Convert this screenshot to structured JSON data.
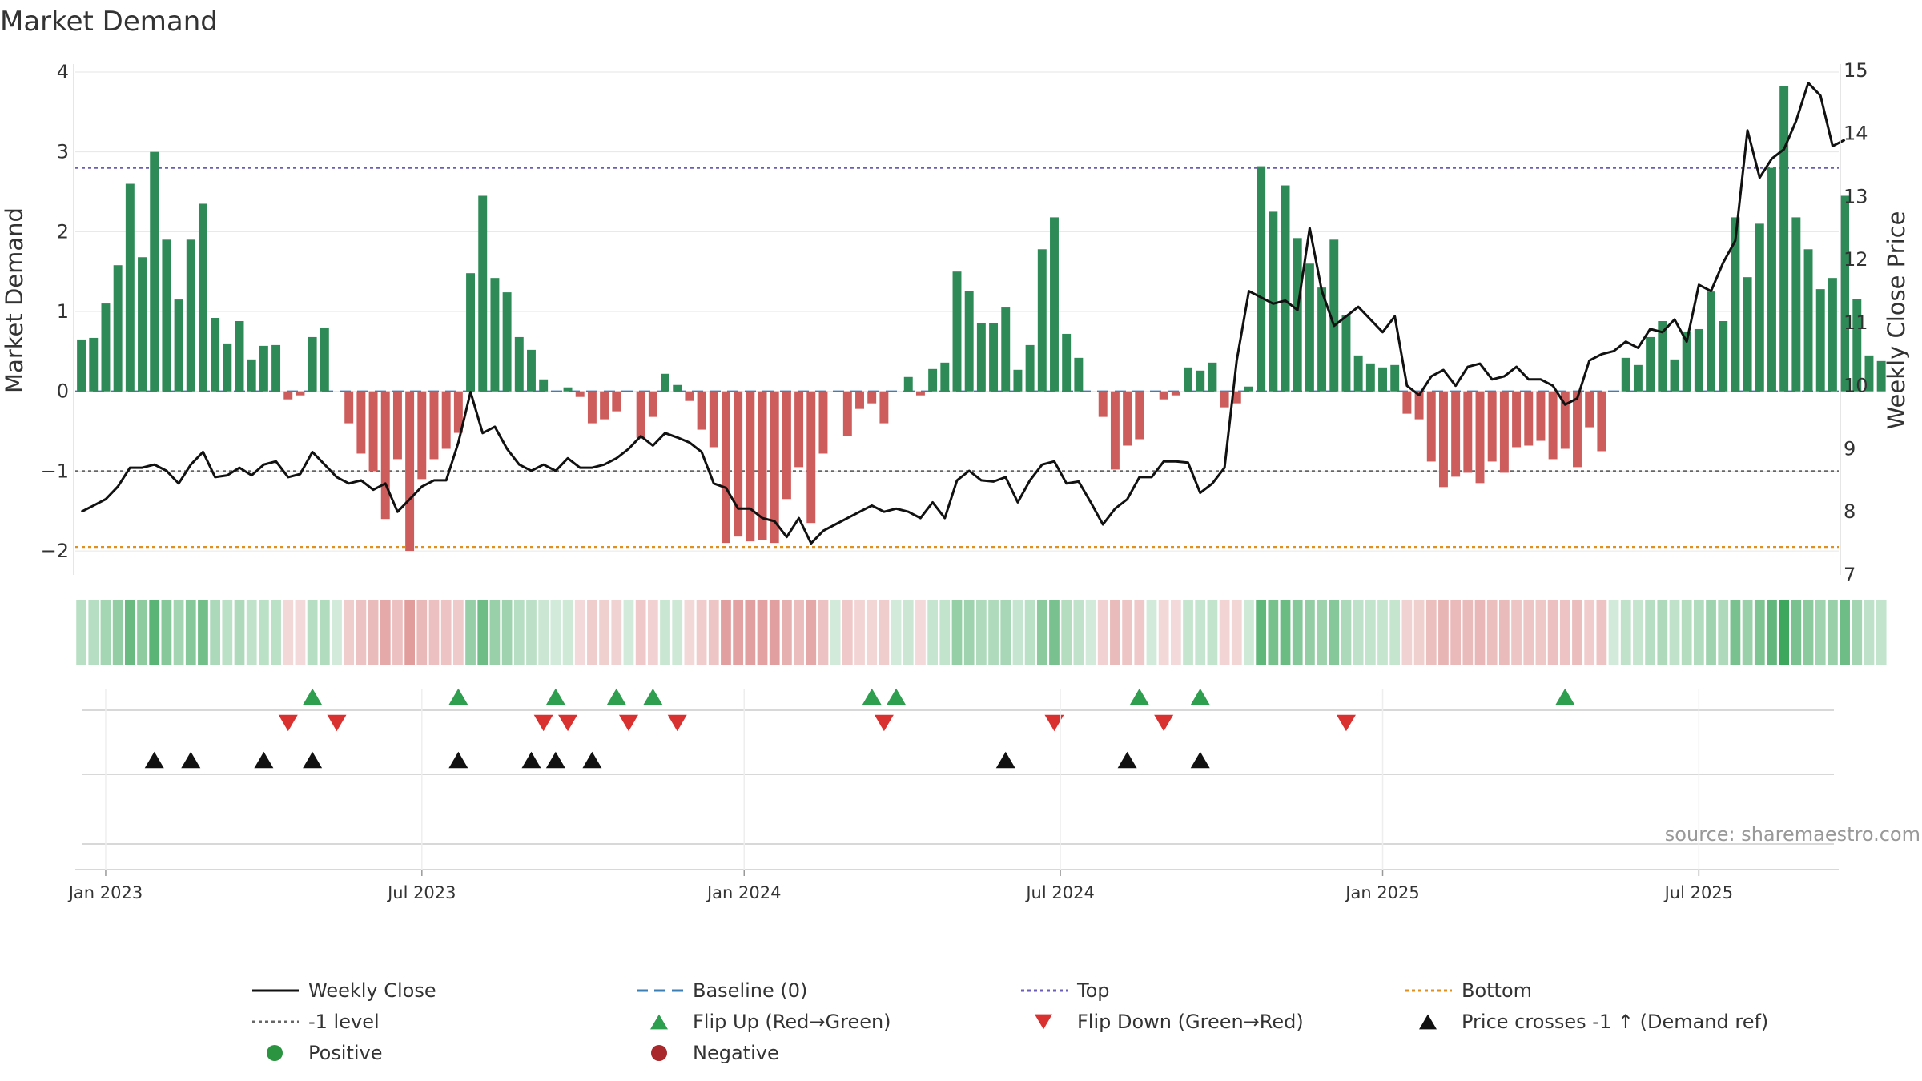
{
  "chart_data": {
    "type": "bar",
    "title": "Market Demand",
    "ylabel_left": "Market Demand",
    "ylabel_right": "Weekly Close Price",
    "source": "source: sharemaestro.com",
    "ylim_left": [
      -2.3,
      4.1
    ],
    "ylim_right": [
      7,
      15.1
    ],
    "yticks_left": [
      4,
      3,
      2,
      1,
      0,
      -1,
      -2
    ],
    "ytick_labels_left": [
      "4",
      "3",
      "2",
      "1",
      "0",
      "−1",
      "−2"
    ],
    "yticks_right": [
      15,
      14,
      13,
      12,
      11,
      10,
      9,
      8,
      7
    ],
    "ytick_labels_right": [
      "15",
      "14",
      "13",
      "12",
      "11",
      "10",
      "9",
      "8",
      "7"
    ],
    "x_start": "2022-12-19",
    "weeks": 145,
    "xticks": [
      {
        "label": "Jan 2023",
        "week": 2
      },
      {
        "label": "Jul 2023",
        "week": 28
      },
      {
        "label": "Jan 2024",
        "week": 54.5
      },
      {
        "label": "Jul 2024",
        "week": 80.5
      },
      {
        "label": "Jan 2025",
        "week": 107
      },
      {
        "label": "Jul 2025",
        "week": 133
      }
    ],
    "reference_lines": {
      "top": 2.8,
      "minus_one": -1.0,
      "bottom": -1.95,
      "baseline": 0
    },
    "series": [
      {
        "name": "Market Demand",
        "type": "bar",
        "values": [
          0.65,
          0.67,
          1.1,
          1.58,
          2.6,
          1.68,
          3.0,
          1.9,
          1.15,
          1.9,
          2.35,
          0.92,
          0.6,
          0.88,
          0.4,
          0.57,
          0.58,
          -0.1,
          -0.05,
          0.68,
          0.8,
          0.0,
          -0.4,
          -0.78,
          -1.0,
          -1.6,
          -0.85,
          -2.0,
          -1.1,
          -0.85,
          -0.72,
          -0.52,
          1.48,
          2.45,
          1.42,
          1.24,
          0.68,
          0.52,
          0.15,
          0.0,
          0.05,
          -0.07,
          -0.4,
          -0.35,
          -0.25,
          0.0,
          -0.58,
          -0.32,
          0.22,
          0.08,
          -0.12,
          -0.48,
          -0.7,
          -1.9,
          -1.82,
          -1.88,
          -1.86,
          -1.9,
          -1.35,
          -0.95,
          -1.65,
          -0.78,
          0.0,
          -0.56,
          -0.22,
          -0.15,
          -0.4,
          0.0,
          0.18,
          -0.05,
          0.28,
          0.36,
          1.5,
          1.26,
          0.86,
          0.86,
          1.05,
          0.27,
          0.58,
          1.78,
          2.18,
          0.72,
          0.42,
          0.0,
          -0.32,
          -0.98,
          -0.68,
          -0.6,
          0.0,
          -0.1,
          -0.05,
          0.3,
          0.26,
          0.36,
          -0.2,
          -0.15,
          0.06,
          2.82,
          2.25,
          2.58,
          1.92,
          1.6,
          1.3,
          1.9,
          0.95,
          0.45,
          0.35,
          0.3,
          0.33,
          -0.28,
          -0.35,
          -0.88,
          -1.2,
          -1.07,
          -1.02,
          -1.15,
          -0.88,
          -1.02,
          -0.7,
          -0.68,
          -0.62,
          -0.85,
          -0.72,
          -0.95,
          -0.45,
          -0.75,
          0.0,
          0.42,
          0.33,
          0.68,
          0.88,
          0.4,
          0.75,
          0.78,
          1.25,
          0.88,
          2.18,
          1.43,
          2.1,
          2.8,
          3.82,
          2.18,
          1.78,
          1.28,
          1.42,
          2.45,
          1.16,
          0.45,
          0.38
        ]
      },
      {
        "name": "Weekly Close",
        "type": "line",
        "axis": "right",
        "values": [
          8.0,
          8.1,
          8.2,
          8.4,
          8.7,
          8.7,
          8.75,
          8.65,
          8.45,
          8.75,
          8.95,
          8.55,
          8.58,
          8.7,
          8.58,
          8.75,
          8.8,
          8.55,
          8.6,
          8.95,
          8.75,
          8.55,
          8.45,
          8.5,
          8.35,
          8.45,
          8.0,
          8.2,
          8.4,
          8.5,
          8.5,
          9.1,
          9.9,
          9.25,
          9.35,
          9.0,
          8.75,
          8.65,
          8.75,
          8.65,
          8.85,
          8.7,
          8.7,
          8.75,
          8.85,
          9.0,
          9.2,
          9.05,
          9.25,
          9.18,
          9.1,
          8.95,
          8.45,
          8.38,
          8.05,
          8.05,
          7.9,
          7.85,
          7.6,
          7.9,
          7.5,
          7.7,
          7.8,
          7.9,
          8.0,
          8.1,
          8.0,
          8.05,
          8.0,
          7.9,
          8.15,
          7.9,
          8.5,
          8.65,
          8.5,
          8.48,
          8.55,
          8.15,
          8.5,
          8.75,
          8.8,
          8.45,
          8.48,
          8.15,
          7.8,
          8.05,
          8.2,
          8.55,
          8.55,
          8.8,
          8.8,
          8.78,
          8.3,
          8.45,
          8.7,
          10.4,
          11.5,
          11.4,
          11.3,
          11.35,
          11.2,
          12.5,
          11.5,
          10.95,
          11.1,
          11.25,
          11.05,
          10.85,
          11.1,
          10.0,
          9.85,
          10.15,
          10.25,
          10.0,
          10.3,
          10.35,
          10.1,
          10.15,
          10.3,
          10.1,
          10.1,
          10.0,
          9.7,
          9.8,
          10.4,
          10.5,
          10.55,
          10.7,
          10.6,
          10.9,
          10.85,
          11.05,
          10.7,
          11.6,
          11.5,
          11.95,
          12.3,
          14.05,
          13.3,
          13.6,
          13.75,
          14.2,
          14.8,
          14.6,
          13.8,
          13.9
        ]
      }
    ],
    "flip_up_weeks": [
      19,
      31,
      39,
      44,
      47,
      65,
      67,
      87,
      92,
      122
    ],
    "flip_down_weeks": [
      17,
      21,
      38,
      40,
      45,
      49,
      66,
      80,
      89,
      104
    ],
    "price_cross_weeks": [
      6,
      9,
      15,
      19,
      31,
      37,
      39,
      42,
      76,
      86,
      92
    ],
    "legend": [
      {
        "label": "Weekly Close",
        "marker": "line-solid",
        "color": "#111111"
      },
      {
        "label": "Baseline (0)",
        "marker": "line-dash",
        "color": "#3b7fb5"
      },
      {
        "label": "Top",
        "marker": "line-dot",
        "color": "#6a5fb8"
      },
      {
        "label": "Bottom",
        "marker": "line-dot",
        "color": "#e0901f"
      },
      {
        "label": "-1 level",
        "marker": "line-dot",
        "color": "#666666"
      },
      {
        "label": "Flip Up (Red→Green)",
        "marker": "tri-up",
        "color": "#2e9e4f"
      },
      {
        "label": "Flip Down (Green→Red)",
        "marker": "tri-down",
        "color": "#d93030"
      },
      {
        "label": "Price crosses -1 ↑ (Demand ref)",
        "marker": "tri-up",
        "color": "#111111"
      },
      {
        "label": "Positive",
        "marker": "circle",
        "color": "#2a9440"
      },
      {
        "label": "Negative",
        "marker": "circle",
        "color": "#a8282c"
      }
    ],
    "colors": {
      "positive_bar": "#2e8b57",
      "negative_bar": "#cd5c5c",
      "line": "#111111",
      "baseline": "#3b7fb5",
      "top": "#6a5fb8",
      "minus_one": "#666666",
      "bottom": "#e0901f",
      "flip_up": "#2e9e4f",
      "flip_down": "#d93030",
      "cross": "#111111"
    }
  }
}
